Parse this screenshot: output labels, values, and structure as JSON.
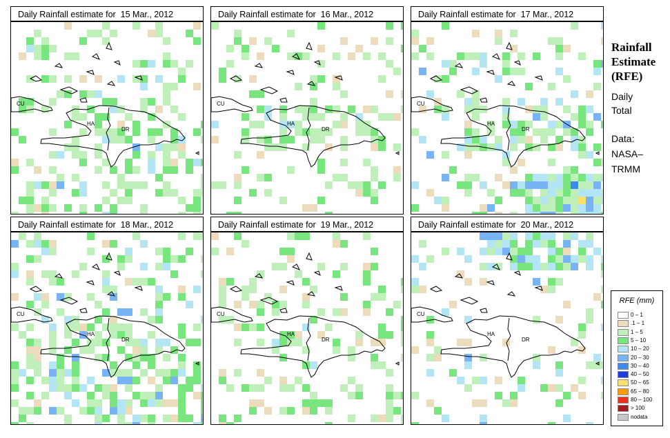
{
  "panels": [
    {
      "title": "Daily Rainfall estimate for  15 Mar., 2012",
      "rain": {
        "green": 0.16,
        "light": 0.03,
        "blue": 0.01,
        "island": 0.5
      }
    },
    {
      "title": "Daily Rainfall estimate for  16 Mar., 2012",
      "rain": {
        "green": 0.14,
        "light": 0.04,
        "blue": 0.005,
        "island": 0.6
      }
    },
    {
      "title": "Daily Rainfall estimate for  17 Mar., 2012",
      "rain": {
        "green": 0.14,
        "light": 0.03,
        "blue": 0.06,
        "island": 0.9
      }
    },
    {
      "title": "Daily Rainfall estimate for  18 Mar., 2012",
      "rain": {
        "green": 0.22,
        "light": 0.04,
        "blue": 0.04,
        "island": 0.5
      }
    },
    {
      "title": "Daily Rainfall estimate for  19 Mar., 2012",
      "rain": {
        "green": 0.18,
        "light": 0.05,
        "blue": 0.005,
        "island": 0.05
      }
    },
    {
      "title": "Daily Rainfall estimate for  20 Mar., 2012",
      "rain": {
        "green": 0.08,
        "light": 0.03,
        "blue": 0.04,
        "island": 0.0
      }
    }
  ],
  "map_labels": {
    "cuba": "CU",
    "haiti": "HA",
    "dominican_republic": "DR"
  },
  "side": {
    "title_lines": [
      "Rainfall",
      "Estimate",
      "(RFE)"
    ],
    "period_lines": [
      "Daily",
      "Total"
    ],
    "data_lines": [
      "Data:",
      "NASA–",
      "TRMM"
    ]
  },
  "legend": {
    "title": "RFE (mm)",
    "items": [
      {
        "label": "0 – 1",
        "color": "#ffffff"
      },
      {
        "label": ".1 – 1",
        "color": "#ecdcbc"
      },
      {
        "label": "1 – 5",
        "color": "#bff0b9"
      },
      {
        "label": "5 – 10",
        "color": "#79e57e"
      },
      {
        "label": "10 – 20",
        "color": "#b4e5f5"
      },
      {
        "label": "20 – 30",
        "color": "#78b4f5"
      },
      {
        "label": "30 – 40",
        "color": "#3c8cf0"
      },
      {
        "label": "40 – 50",
        "color": "#1e3ce6"
      },
      {
        "label": "50 – 65",
        "color": "#f5e36b"
      },
      {
        "label": "65 – 80",
        "color": "#ff9b00"
      },
      {
        "label": "80 – 100",
        "color": "#e6321e"
      },
      {
        "label": "> 100",
        "color": "#a01e1e"
      },
      {
        "label": "nodata",
        "color": "#c8c8c8"
      }
    ]
  }
}
